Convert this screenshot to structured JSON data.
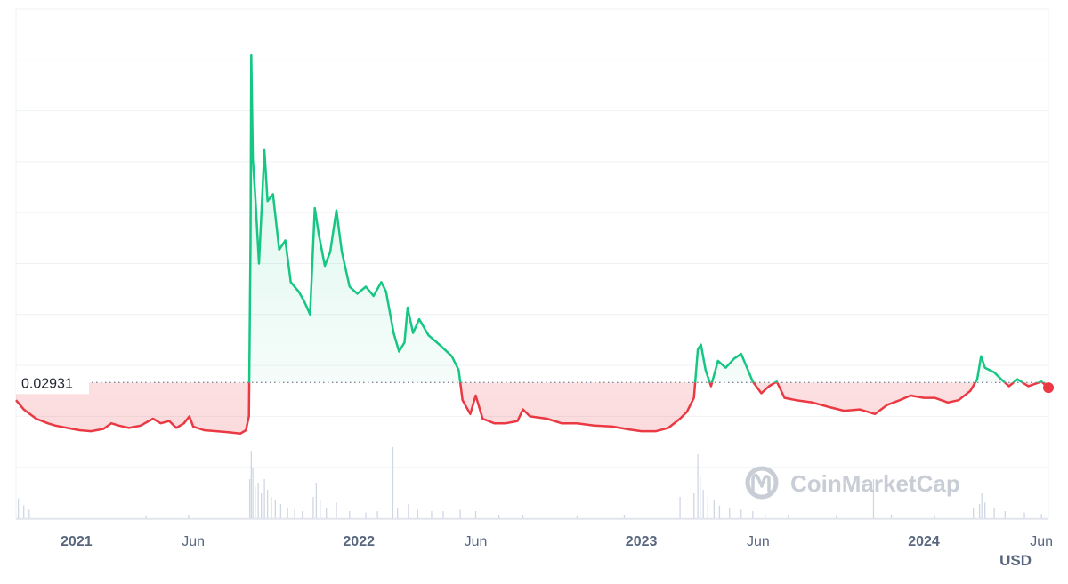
{
  "chart_data": {
    "type": "line",
    "title": "",
    "xlabel": "",
    "ylabel": "",
    "unit_label": "USD",
    "reference_value": 0.02931,
    "reference_label": "0.02931",
    "x_ticks": [
      {
        "label": "2021",
        "date": "2021-01-01",
        "bold": true
      },
      {
        "label": "Jun",
        "date": "2021-06-01",
        "bold": false
      },
      {
        "label": "2022",
        "date": "2022-01-01",
        "bold": true
      },
      {
        "label": "Jun",
        "date": "2022-06-01",
        "bold": false
      },
      {
        "label": "2023",
        "date": "2023-01-01",
        "bold": true
      },
      {
        "label": "Jun",
        "date": "2023-06-01",
        "bold": false
      },
      {
        "label": "2024",
        "date": "2024-01-01",
        "bold": true
      },
      {
        "label": "Jun",
        "date": "2024-06-01",
        "bold": false
      }
    ],
    "xlim": [
      "2020-10-15",
      "2024-06-10"
    ],
    "ylim": [
      0,
      0.11
    ],
    "y_ticks_shown": false,
    "grid": true,
    "colors": {
      "above": "#16c784",
      "below": "#ea3943",
      "grid": "#eff2f5",
      "volume": "#cfd6e4"
    },
    "series": [
      {
        "points": [
          [
            "2020-10-15",
            0.0255
          ],
          [
            "2020-10-25",
            0.0235
          ],
          [
            "2020-11-10",
            0.0215
          ],
          [
            "2020-11-25",
            0.0205
          ],
          [
            "2020-12-05",
            0.02
          ],
          [
            "2020-12-20",
            0.0195
          ],
          [
            "2021-01-05",
            0.019
          ],
          [
            "2021-01-20",
            0.0188
          ],
          [
            "2021-02-05",
            0.0193
          ],
          [
            "2021-02-15",
            0.0205
          ],
          [
            "2021-02-25",
            0.02
          ],
          [
            "2021-03-10",
            0.0195
          ],
          [
            "2021-03-25",
            0.02
          ],
          [
            "2021-04-10",
            0.0215
          ],
          [
            "2021-04-20",
            0.0205
          ],
          [
            "2021-05-01",
            0.021
          ],
          [
            "2021-05-10",
            0.0195
          ],
          [
            "2021-05-20",
            0.0205
          ],
          [
            "2021-05-27",
            0.022
          ],
          [
            "2021-06-01",
            0.0198
          ],
          [
            "2021-06-15",
            0.019
          ],
          [
            "2021-07-01",
            0.0188
          ],
          [
            "2021-07-15",
            0.0186
          ],
          [
            "2021-08-01",
            0.0183
          ],
          [
            "2021-08-08",
            0.019
          ],
          [
            "2021-08-12",
            0.022
          ],
          [
            "2021-08-14",
            0.06
          ],
          [
            "2021-08-15",
            0.1
          ],
          [
            "2021-08-17",
            0.0775
          ],
          [
            "2021-08-20",
            0.07
          ],
          [
            "2021-08-25",
            0.055
          ],
          [
            "2021-09-01",
            0.0795
          ],
          [
            "2021-09-05",
            0.0685
          ],
          [
            "2021-09-12",
            0.07
          ],
          [
            "2021-09-20",
            0.058
          ],
          [
            "2021-09-28",
            0.06
          ],
          [
            "2021-10-05",
            0.051
          ],
          [
            "2021-10-15",
            0.049
          ],
          [
            "2021-10-22",
            0.047
          ],
          [
            "2021-10-30",
            0.044
          ],
          [
            "2021-11-05",
            0.067
          ],
          [
            "2021-11-10",
            0.0615
          ],
          [
            "2021-11-18",
            0.0545
          ],
          [
            "2021-11-25",
            0.0575
          ],
          [
            "2021-12-03",
            0.0665
          ],
          [
            "2021-12-10",
            0.0575
          ],
          [
            "2021-12-20",
            0.05
          ],
          [
            "2021-12-30",
            0.0485
          ],
          [
            "2022-01-10",
            0.05
          ],
          [
            "2022-01-20",
            0.048
          ],
          [
            "2022-01-30",
            0.051
          ],
          [
            "2022-02-05",
            0.049
          ],
          [
            "2022-02-15",
            0.04
          ],
          [
            "2022-02-22",
            0.036
          ],
          [
            "2022-03-01",
            0.038
          ],
          [
            "2022-03-05",
            0.0455
          ],
          [
            "2022-03-12",
            0.04
          ],
          [
            "2022-03-20",
            0.043
          ],
          [
            "2022-04-01",
            0.0395
          ],
          [
            "2022-04-15",
            0.0375
          ],
          [
            "2022-05-01",
            0.035
          ],
          [
            "2022-05-10",
            0.032
          ],
          [
            "2022-05-15",
            0.0255
          ],
          [
            "2022-05-25",
            0.0225
          ],
          [
            "2022-06-01",
            0.0265
          ],
          [
            "2022-06-10",
            0.0215
          ],
          [
            "2022-06-25",
            0.0205
          ],
          [
            "2022-07-10",
            0.0205
          ],
          [
            "2022-07-25",
            0.021
          ],
          [
            "2022-08-01",
            0.0235
          ],
          [
            "2022-08-10",
            0.022
          ],
          [
            "2022-09-01",
            0.0215
          ],
          [
            "2022-09-20",
            0.0205
          ],
          [
            "2022-10-10",
            0.0205
          ],
          [
            "2022-11-01",
            0.02
          ],
          [
            "2022-11-25",
            0.0198
          ],
          [
            "2022-12-15",
            0.0192
          ],
          [
            "2023-01-01",
            0.0188
          ],
          [
            "2023-01-20",
            0.0188
          ],
          [
            "2023-02-05",
            0.0195
          ],
          [
            "2023-02-20",
            0.0215
          ],
          [
            "2023-03-01",
            0.023
          ],
          [
            "2023-03-10",
            0.026
          ],
          [
            "2023-03-15",
            0.0365
          ],
          [
            "2023-03-19",
            0.0375
          ],
          [
            "2023-03-25",
            0.032
          ],
          [
            "2023-04-01",
            0.0285
          ],
          [
            "2023-04-10",
            0.034
          ],
          [
            "2023-04-20",
            0.0325
          ],
          [
            "2023-05-01",
            0.0345
          ],
          [
            "2023-05-10",
            0.0355
          ],
          [
            "2023-05-25",
            0.0295
          ],
          [
            "2023-06-05",
            0.027
          ],
          [
            "2023-06-15",
            0.0285
          ],
          [
            "2023-06-25",
            0.0295
          ],
          [
            "2023-07-05",
            0.026
          ],
          [
            "2023-07-20",
            0.0255
          ],
          [
            "2023-08-10",
            0.025
          ],
          [
            "2023-09-01",
            0.024
          ],
          [
            "2023-09-20",
            0.0232
          ],
          [
            "2023-10-10",
            0.0235
          ],
          [
            "2023-10-30",
            0.0225
          ],
          [
            "2023-11-15",
            0.0245
          ],
          [
            "2023-12-01",
            0.0255
          ],
          [
            "2023-12-15",
            0.0265
          ],
          [
            "2024-01-01",
            0.026
          ],
          [
            "2024-01-15",
            0.026
          ],
          [
            "2024-02-01",
            0.025
          ],
          [
            "2024-02-15",
            0.0255
          ],
          [
            "2024-03-01",
            0.0275
          ],
          [
            "2024-03-10",
            0.03
          ],
          [
            "2024-03-15",
            0.035
          ],
          [
            "2024-03-20",
            0.0325
          ],
          [
            "2024-04-01",
            0.0315
          ],
          [
            "2024-04-10",
            0.03
          ],
          [
            "2024-04-20",
            0.0285
          ],
          [
            "2024-05-01",
            0.03
          ],
          [
            "2024-05-15",
            0.0285
          ],
          [
            "2024-06-01",
            0.0295
          ],
          [
            "2024-06-10",
            0.0282
          ]
        ]
      }
    ],
    "volume": [
      [
        "2020-10-18",
        0.28
      ],
      [
        "2020-10-25",
        0.18
      ],
      [
        "2020-11-01",
        0.12
      ],
      [
        "2021-04-01",
        0.04
      ],
      [
        "2021-05-26",
        0.05
      ],
      [
        "2021-08-13",
        0.55
      ],
      [
        "2021-08-15",
        0.95
      ],
      [
        "2021-08-17",
        0.7
      ],
      [
        "2021-08-20",
        0.45
      ],
      [
        "2021-08-24",
        0.5
      ],
      [
        "2021-08-28",
        0.35
      ],
      [
        "2021-09-01",
        0.55
      ],
      [
        "2021-09-05",
        0.4
      ],
      [
        "2021-09-10",
        0.3
      ],
      [
        "2021-09-15",
        0.25
      ],
      [
        "2021-09-22",
        0.2
      ],
      [
        "2021-10-01",
        0.15
      ],
      [
        "2021-10-10",
        0.12
      ],
      [
        "2021-10-20",
        0.1
      ],
      [
        "2021-11-03",
        0.3
      ],
      [
        "2021-11-07",
        0.5
      ],
      [
        "2021-11-12",
        0.25
      ],
      [
        "2021-11-20",
        0.15
      ],
      [
        "2021-12-03",
        0.22
      ],
      [
        "2021-12-20",
        0.1
      ],
      [
        "2022-01-10",
        0.08
      ],
      [
        "2022-01-25",
        0.1
      ],
      [
        "2022-02-14",
        1.0
      ],
      [
        "2022-02-20",
        0.15
      ],
      [
        "2022-03-06",
        0.2
      ],
      [
        "2022-03-18",
        0.12
      ],
      [
        "2022-04-05",
        0.1
      ],
      [
        "2022-04-20",
        0.1
      ],
      [
        "2022-05-12",
        0.12
      ],
      [
        "2022-06-01",
        0.1
      ],
      [
        "2022-07-01",
        0.05
      ],
      [
        "2022-08-01",
        0.05
      ],
      [
        "2022-10-10",
        0.04
      ],
      [
        "2022-12-10",
        0.05
      ],
      [
        "2023-02-20",
        0.3
      ],
      [
        "2023-03-10",
        0.35
      ],
      [
        "2023-03-15",
        0.9
      ],
      [
        "2023-03-18",
        0.6
      ],
      [
        "2023-03-22",
        0.4
      ],
      [
        "2023-03-28",
        0.3
      ],
      [
        "2023-04-05",
        0.25
      ],
      [
        "2023-04-12",
        0.18
      ],
      [
        "2023-04-25",
        0.15
      ],
      [
        "2023-05-10",
        0.12
      ],
      [
        "2023-05-25",
        0.1
      ],
      [
        "2023-06-10",
        0.06
      ],
      [
        "2023-07-10",
        0.05
      ],
      [
        "2023-09-10",
        0.04
      ],
      [
        "2023-10-28",
        0.55
      ],
      [
        "2023-11-20",
        0.05
      ],
      [
        "2024-01-15",
        0.04
      ],
      [
        "2024-03-05",
        0.15
      ],
      [
        "2024-03-13",
        0.2
      ],
      [
        "2024-03-16",
        0.35
      ],
      [
        "2024-03-20",
        0.22
      ],
      [
        "2024-04-01",
        0.15
      ],
      [
        "2024-04-15",
        0.1
      ],
      [
        "2024-05-10",
        0.08
      ],
      [
        "2024-06-01",
        0.06
      ]
    ]
  },
  "watermark": {
    "text": "CoinMarketCap",
    "icon": "coinmarketcap-logo-icon"
  }
}
